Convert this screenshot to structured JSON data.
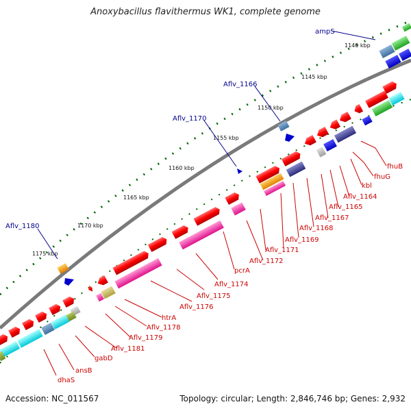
{
  "title": "Anoxybacillus flavithermus WK1, complete genome",
  "footer": {
    "accession": "Accession: NC_011567",
    "topology": "Topology: circular; Length: 2,846,746 bp; Genes: 2,932"
  },
  "scale_labels": [
    "1140 kbp",
    "1145 kbp",
    "1150 kbp",
    "1155 kbp",
    "1160 kbp",
    "1165 kbp",
    "1170 kbp",
    "1175 kbp"
  ],
  "callouts": [
    "ampS",
    "Aflv_1166",
    "Aflv_1170",
    "Aflv_1180"
  ],
  "gene_labels": [
    "fhuB",
    "fhuG",
    "kbl",
    "Aflv_1164",
    "Aflv_1165",
    "Aflv_1167",
    "Aflv_1168",
    "Aflv_1169",
    "Aflv_1171",
    "Aflv_1172",
    "pcrA",
    "Aflv_1174",
    "Aflv_1175",
    "Aflv_1176",
    "htrA",
    "Aflv_1178",
    "Aflv_1179",
    "Aflv_1181",
    "gabD",
    "ansB",
    "dhaS"
  ],
  "colors": {
    "gene_label": "#cc0000",
    "callout": "#00008b",
    "backbone": "#808080",
    "tick": "#006400",
    "cds": "#ff0000"
  }
}
